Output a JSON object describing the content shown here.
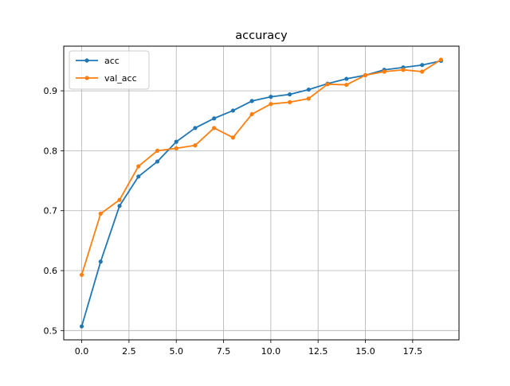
{
  "chart_data": {
    "type": "line",
    "title": "accuracy",
    "xlabel": "",
    "ylabel": "",
    "xlim": [
      -0.95,
      19.95
    ],
    "ylim": [
      0.4845,
      0.9745
    ],
    "xticks": [
      0.0,
      2.5,
      5.0,
      7.5,
      10.0,
      12.5,
      15.0,
      17.5
    ],
    "xtick_labels": [
      "0.0",
      "2.5",
      "5.0",
      "7.5",
      "10.0",
      "12.5",
      "15.0",
      "17.5"
    ],
    "yticks": [
      0.5,
      0.6,
      0.7,
      0.8,
      0.9
    ],
    "ytick_labels": [
      "0.5",
      "0.6",
      "0.7",
      "0.8",
      "0.9"
    ],
    "grid": true,
    "legend_position": "upper-left",
    "x": [
      0,
      1,
      2,
      3,
      4,
      5,
      6,
      7,
      8,
      9,
      10,
      11,
      12,
      13,
      14,
      15,
      16,
      17,
      18,
      19
    ],
    "series": [
      {
        "name": "acc",
        "color": "#1f77b4",
        "marker": "circle",
        "values": [
          0.507,
          0.615,
          0.708,
          0.757,
          0.782,
          0.815,
          0.838,
          0.854,
          0.867,
          0.883,
          0.89,
          0.894,
          0.902,
          0.912,
          0.92,
          0.926,
          0.935,
          0.939,
          0.943,
          0.95
        ]
      },
      {
        "name": "val_acc",
        "color": "#ff7f0e",
        "marker": "circle",
        "values": [
          0.593,
          0.695,
          0.718,
          0.774,
          0.8,
          0.804,
          0.809,
          0.838,
          0.822,
          0.861,
          0.878,
          0.881,
          0.887,
          0.911,
          0.91,
          0.926,
          0.932,
          0.935,
          0.932,
          0.952
        ]
      }
    ]
  }
}
